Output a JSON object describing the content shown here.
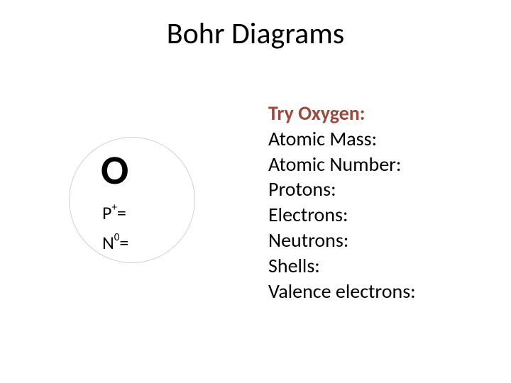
{
  "title": "Bohr Diagrams",
  "element": {
    "symbol": "O",
    "proton_label_prefix": "P",
    "proton_label_sup": "+",
    "proton_label_suffix": "=",
    "neutron_label_prefix": "N",
    "neutron_label_sup": "0",
    "neutron_label_suffix": "="
  },
  "info": {
    "heading": "Try Oxygen:",
    "items": [
      "Atomic Mass:",
      "Atomic Number:",
      "Protons:",
      "Electrons:",
      "Neutrons:",
      "Shells:",
      "Valence electrons:"
    ]
  },
  "style": {
    "heading_color": "#9d4a3e",
    "text_color": "#000000",
    "background_color": "#ffffff",
    "circle_border_color": "#d0d0d0",
    "title_fontsize": 42,
    "symbol_fontsize": 58,
    "label_fontsize": 26,
    "info_fontsize": 28
  }
}
